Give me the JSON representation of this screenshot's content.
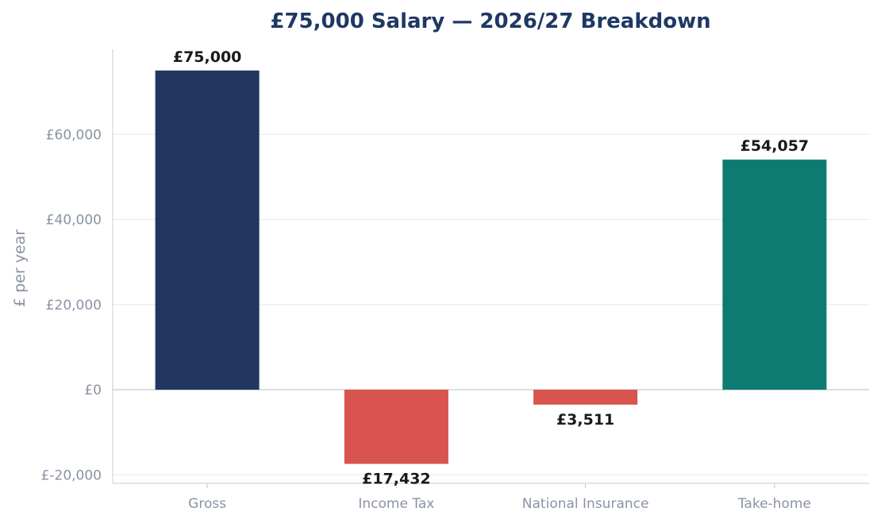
{
  "chart_data": {
    "type": "bar",
    "title": "£75,000 Salary — 2026/27 Breakdown",
    "xlabel": "",
    "ylabel": "£ per year",
    "categories": [
      "Gross",
      "Income Tax",
      "National Insurance",
      "Take-home"
    ],
    "values": [
      75000,
      -17432,
      -3511,
      54057
    ],
    "value_labels": [
      "£75,000",
      "£17,432",
      "£3,511",
      "£54,057"
    ],
    "colors": [
      "#21375f",
      "#d9534f",
      "#d9534f",
      "#0e7b72"
    ],
    "ylim": [
      -22000,
      80000
    ],
    "yticks": [
      -20000,
      0,
      20000,
      40000,
      60000
    ],
    "ytick_labels": [
      "£-20,000",
      "£0",
      "£20,000",
      "£40,000",
      "£60,000"
    ],
    "grid": true,
    "legend": null
  }
}
